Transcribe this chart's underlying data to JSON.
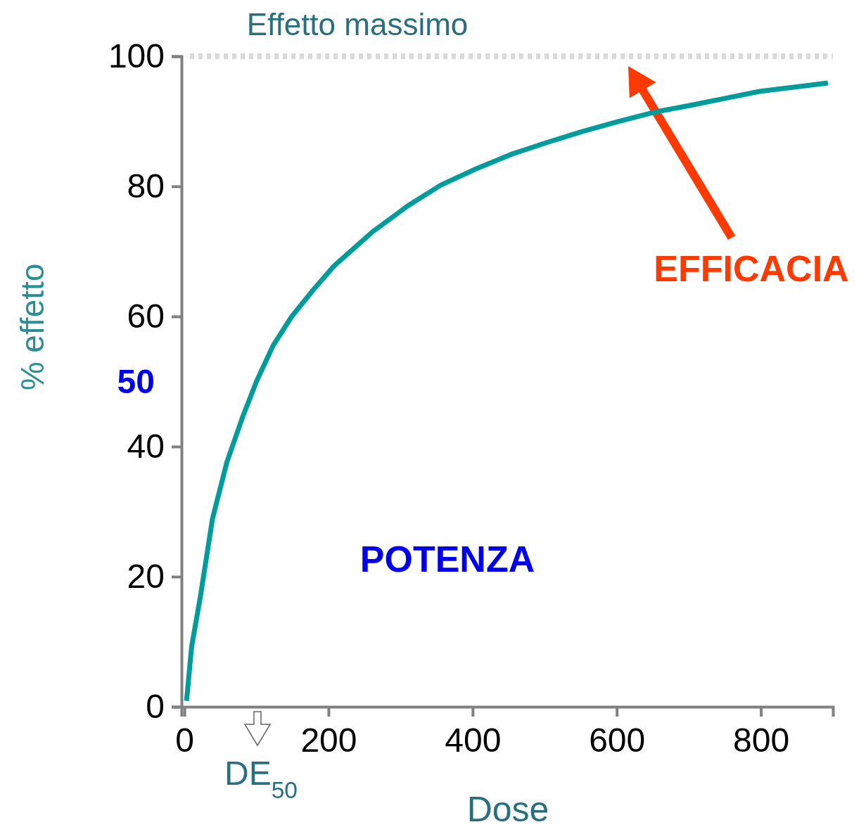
{
  "chart_data": {
    "type": "line",
    "xlabel": "Dose",
    "ylabel": "% effetto",
    "x": [
      3,
      10,
      22,
      39,
      59,
      81,
      100,
      123,
      149,
      179,
      208,
      261,
      310,
      356,
      405,
      453,
      502,
      551,
      600,
      652,
      700,
      749,
      798,
      893
    ],
    "series": [
      {
        "color": "#009c9c",
        "values": [
          0.9,
          9.2,
          16.8,
          28.9,
          37.6,
          44.6,
          50,
          55.5,
          60,
          64.1,
          67.8,
          73,
          77,
          80.2,
          82.7,
          84.9,
          86.7,
          88.4,
          89.9,
          91.4,
          92.4,
          93.5,
          94.6,
          95.9
        ]
      }
    ],
    "xlim": [
      -4,
      900
    ],
    "ylim": [
      0,
      100
    ],
    "xticks": [
      0,
      200,
      400,
      600,
      800
    ],
    "yticks": [
      0,
      20,
      40,
      60,
      80,
      100
    ],
    "grid": false,
    "marker": "none",
    "line_style": "solid",
    "ref_lines": [
      {
        "axis": "y",
        "value": 100,
        "label": "Effetto massimo",
        "color": "#d9d9d9",
        "line_style": "dotted"
      }
    ],
    "annotations": [
      "50",
      "DE$_{50}$",
      "POTENZA",
      "EFFICACIA"
    ]
  }
}
